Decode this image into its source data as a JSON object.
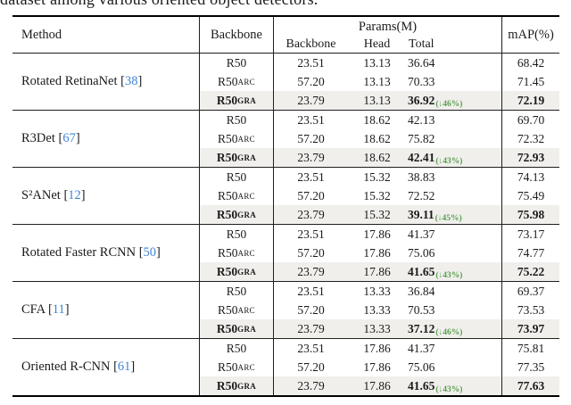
{
  "caption_fragment": "dataset among various oriented object detectors.",
  "colors": {
    "citation_blue": "#4183d7",
    "reduction_green": "#5aa050",
    "highlight_bg": "#f0efec"
  },
  "table": {
    "headers": {
      "method": "Method",
      "backbone": "Backbone",
      "params_group": "Params(M)",
      "params_sub": [
        "Backbone",
        "Head",
        "Total"
      ],
      "map": "mAP(%)"
    },
    "groups": [
      {
        "method": "Rotated RetinaNet",
        "citation": "38",
        "rows": [
          {
            "backbone_base": "R50",
            "backbone_sub": "",
            "params_backbone": "23.51",
            "params_head": "13.13",
            "total": "36.64",
            "reduction": "",
            "map": "68.42",
            "highlight": false
          },
          {
            "backbone_base": "R50",
            "backbone_sub": "ARC",
            "params_backbone": "57.20",
            "params_head": "13.13",
            "total": "70.33",
            "reduction": "",
            "map": "71.45",
            "highlight": false
          },
          {
            "backbone_base": "R50",
            "backbone_sub": "GRA",
            "params_backbone": "23.79",
            "params_head": "13.13",
            "total": "36.92",
            "reduction": "(↓46%)",
            "map": "72.19",
            "highlight": true
          }
        ]
      },
      {
        "method": "R3Det",
        "citation": "67",
        "rows": [
          {
            "backbone_base": "R50",
            "backbone_sub": "",
            "params_backbone": "23.51",
            "params_head": "18.62",
            "total": "42.13",
            "reduction": "",
            "map": "69.70",
            "highlight": false
          },
          {
            "backbone_base": "R50",
            "backbone_sub": "ARC",
            "params_backbone": "57.20",
            "params_head": "18.62",
            "total": "75.82",
            "reduction": "",
            "map": "72.32",
            "highlight": false
          },
          {
            "backbone_base": "R50",
            "backbone_sub": "GRA",
            "params_backbone": "23.79",
            "params_head": "18.62",
            "total": "42.41",
            "reduction": "(↓43%)",
            "map": "72.93",
            "highlight": true
          }
        ]
      },
      {
        "method": "S²ANet",
        "citation": "12",
        "rows": [
          {
            "backbone_base": "R50",
            "backbone_sub": "",
            "params_backbone": "23.51",
            "params_head": "15.32",
            "total": "38.83",
            "reduction": "",
            "map": "74.13",
            "highlight": false
          },
          {
            "backbone_base": "R50",
            "backbone_sub": "ARC",
            "params_backbone": "57.20",
            "params_head": "15.32",
            "total": "72.52",
            "reduction": "",
            "map": "75.49",
            "highlight": false
          },
          {
            "backbone_base": "R50",
            "backbone_sub": "GRA",
            "params_backbone": "23.79",
            "params_head": "15.32",
            "total": "39.11",
            "reduction": "(↓45%)",
            "map": "75.98",
            "highlight": true
          }
        ]
      },
      {
        "method": "Rotated Faster RCNN",
        "citation": "50",
        "rows": [
          {
            "backbone_base": "R50",
            "backbone_sub": "",
            "params_backbone": "23.51",
            "params_head": "17.86",
            "total": "41.37",
            "reduction": "",
            "map": "73.17",
            "highlight": false
          },
          {
            "backbone_base": "R50",
            "backbone_sub": "ARC",
            "params_backbone": "57.20",
            "params_head": "17.86",
            "total": "75.06",
            "reduction": "",
            "map": "74.77",
            "highlight": false
          },
          {
            "backbone_base": "R50",
            "backbone_sub": "GRA",
            "params_backbone": "23.79",
            "params_head": "17.86",
            "total": "41.65",
            "reduction": "(↓43%)",
            "map": "75.22",
            "highlight": true
          }
        ]
      },
      {
        "method": "CFA",
        "citation": "11",
        "rows": [
          {
            "backbone_base": "R50",
            "backbone_sub": "",
            "params_backbone": "23.51",
            "params_head": "13.33",
            "total": "36.84",
            "reduction": "",
            "map": "69.37",
            "highlight": false
          },
          {
            "backbone_base": "R50",
            "backbone_sub": "ARC",
            "params_backbone": "57.20",
            "params_head": "13.33",
            "total": "70.53",
            "reduction": "",
            "map": "73.53",
            "highlight": false
          },
          {
            "backbone_base": "R50",
            "backbone_sub": "GRA",
            "params_backbone": "23.79",
            "params_head": "13.33",
            "total": "37.12",
            "reduction": "(↓46%)",
            "map": "73.97",
            "highlight": true
          }
        ]
      },
      {
        "method": "Oriented R-CNN",
        "citation": "61",
        "rows": [
          {
            "backbone_base": "R50",
            "backbone_sub": "",
            "params_backbone": "23.51",
            "params_head": "17.86",
            "total": "41.37",
            "reduction": "",
            "map": "75.81",
            "highlight": false
          },
          {
            "backbone_base": "R50",
            "backbone_sub": "ARC",
            "params_backbone": "57.20",
            "params_head": "17.86",
            "total": "75.06",
            "reduction": "",
            "map": "77.35",
            "highlight": false
          },
          {
            "backbone_base": "R50",
            "backbone_sub": "GRA",
            "params_backbone": "23.79",
            "params_head": "17.86",
            "total": "41.65",
            "reduction": "(↓43%)",
            "map": "77.63",
            "highlight": true
          }
        ]
      }
    ]
  }
}
